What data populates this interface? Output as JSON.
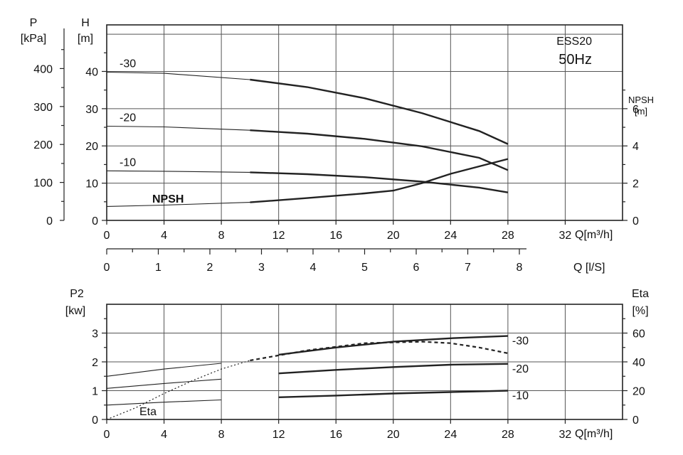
{
  "chart_data": [
    {
      "type": "line",
      "labels": {
        "model": "ESS20",
        "frequency": "50Hz",
        "h_axis_name": "H",
        "h_axis_unit": "[m]",
        "p_axis_name": "P",
        "p_axis_unit": "[kPa]",
        "npsh_axis_name": "NPSH",
        "npsh_axis_unit": "[m]",
        "q_m3h_label": "Q[m³/h]",
        "q_ls_label": "Q [l/S]",
        "npsh_curve_label": "NPSH"
      },
      "x_m3h_ticks": [
        0,
        4,
        8,
        12,
        16,
        20,
        24,
        28,
        32
      ],
      "x_m3h_range": [
        0,
        36
      ],
      "x_ls_ticks": [
        0,
        1,
        2,
        3,
        4,
        5,
        6,
        7,
        8
      ],
      "h_ticks": [
        0,
        10,
        20,
        30,
        40
      ],
      "h_range": [
        0,
        52.5
      ],
      "p_ticks": [
        0,
        100,
        200,
        300,
        400
      ],
      "npsh_ticks": [
        0,
        2,
        4,
        6
      ],
      "npsh_range": [
        0,
        10.5
      ],
      "series": [
        {
          "name": "-30",
          "x": [
            0,
            4,
            10,
            14,
            18,
            22,
            26,
            28
          ],
          "y": [
            39.8,
            39.5,
            37.8,
            35.8,
            32.8,
            28.8,
            24,
            20.5
          ]
        },
        {
          "name": "-20",
          "x": [
            0,
            4,
            10,
            14,
            18,
            22,
            26,
            28
          ],
          "y": [
            25.3,
            25.1,
            24.2,
            23.3,
            21.9,
            19.9,
            16.8,
            13.5
          ]
        },
        {
          "name": "-10",
          "x": [
            0,
            4,
            10,
            14,
            18,
            22,
            26,
            28
          ],
          "y": [
            13.3,
            13.2,
            12.9,
            12.4,
            11.6,
            10.4,
            8.8,
            7.5
          ]
        },
        {
          "name": "NPSH",
          "x": [
            0,
            4,
            10,
            14,
            18,
            20,
            22,
            24,
            26,
            28
          ],
          "y": [
            0.75,
            0.82,
            0.97,
            1.2,
            1.45,
            1.6,
            2.0,
            2.5,
            2.9,
            3.3
          ]
        }
      ]
    },
    {
      "type": "line",
      "labels": {
        "p2_axis_name": "P2",
        "p2_axis_unit": "[kw]",
        "eta_axis_name": "Eta",
        "eta_axis_unit": "[%]",
        "q_m3h_label": "Q[m³/h]",
        "eta_curve_label": "Eta"
      },
      "x_m3h_ticks": [
        0,
        4,
        8,
        12,
        16,
        20,
        24,
        28,
        32
      ],
      "p2_ticks": [
        0,
        1,
        2,
        3
      ],
      "p2_range": [
        0,
        4
      ],
      "eta_ticks": [
        0,
        20,
        40,
        60
      ],
      "series": [
        {
          "name": "-30",
          "x": [
            0,
            4,
            8,
            12,
            16,
            20,
            24,
            28
          ],
          "y": [
            1.5,
            1.75,
            1.95,
            2.25,
            2.5,
            2.7,
            2.82,
            2.9
          ]
        },
        {
          "name": "-20",
          "x": [
            0,
            4,
            8,
            12,
            16,
            20,
            24,
            28
          ],
          "y": [
            1.08,
            1.25,
            1.4,
            1.6,
            1.72,
            1.82,
            1.9,
            1.93
          ]
        },
        {
          "name": "-10",
          "x": [
            0,
            4,
            8,
            12,
            16,
            20,
            24,
            28
          ],
          "y": [
            0.5,
            0.6,
            0.68,
            0.77,
            0.83,
            0.9,
            0.95,
            1.0
          ]
        },
        {
          "name": "Eta",
          "x": [
            0,
            2,
            4,
            6,
            8,
            10,
            14,
            18,
            22,
            24,
            26,
            28
          ],
          "y": [
            0,
            8,
            18,
            27,
            35,
            41,
            48,
            53,
            54,
            53,
            50,
            46
          ]
        }
      ]
    }
  ]
}
